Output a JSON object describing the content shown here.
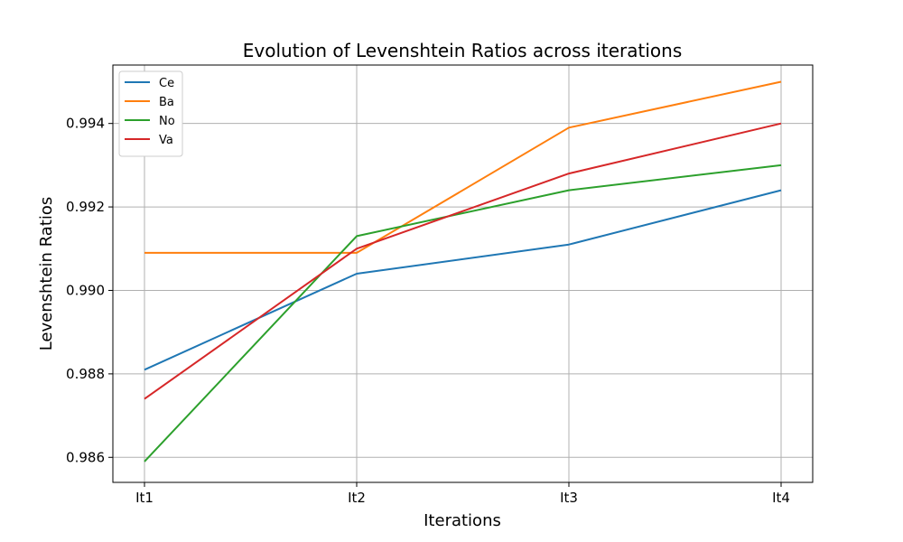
{
  "chart_data": {
    "type": "line",
    "title": "Evolution of Levenshtein Ratios across iterations",
    "xlabel": "Iterations",
    "ylabel": "Levenshtein Ratios",
    "categories": [
      "It1",
      "It2",
      "It3",
      "It4"
    ],
    "ylim": [
      0.9854,
      0.9954
    ],
    "yticks": [
      "0.986",
      "0.988",
      "0.990",
      "0.992",
      "0.994"
    ],
    "grid": true,
    "legend_position": "top-left",
    "series": [
      {
        "name": "Ce",
        "color": "#1f77b4",
        "values": [
          0.9881,
          0.9904,
          0.9911,
          0.9924
        ]
      },
      {
        "name": "Ba",
        "color": "#ff7f0e",
        "values": [
          0.9909,
          0.9909,
          0.9939,
          0.995
        ]
      },
      {
        "name": "No",
        "color": "#2ca02c",
        "values": [
          0.9859,
          0.9913,
          0.9924,
          0.993
        ]
      },
      {
        "name": "Va",
        "color": "#d62728",
        "values": [
          0.9874,
          0.991,
          0.9928,
          0.994
        ]
      }
    ]
  }
}
